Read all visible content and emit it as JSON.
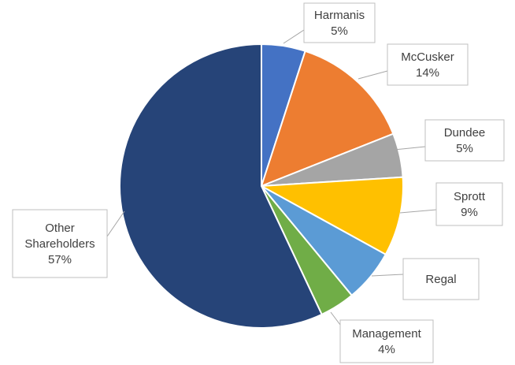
{
  "chart_data": {
    "type": "pie",
    "title": "",
    "series": [
      {
        "name": "Harmanis",
        "value": 5,
        "label": "5%",
        "color": "#4472C4"
      },
      {
        "name": "McCusker",
        "value": 14,
        "label": "14%",
        "color": "#ED7D31"
      },
      {
        "name": "Dundee",
        "value": 5,
        "label": "5%",
        "color": "#A5A5A5"
      },
      {
        "name": "Sprott",
        "value": 9,
        "label": "9%",
        "color": "#FFC000"
      },
      {
        "name": "Regal",
        "value": 6,
        "label": "",
        "color": "#5B9BD5"
      },
      {
        "name": "Management",
        "value": 4,
        "label": "4%",
        "color": "#70AD47"
      },
      {
        "name": "Other Shareholders",
        "value": 57,
        "label": "57%",
        "color": "#264478"
      }
    ],
    "legend": "none",
    "start_angle": "12 o'clock",
    "direction": "clockwise"
  }
}
